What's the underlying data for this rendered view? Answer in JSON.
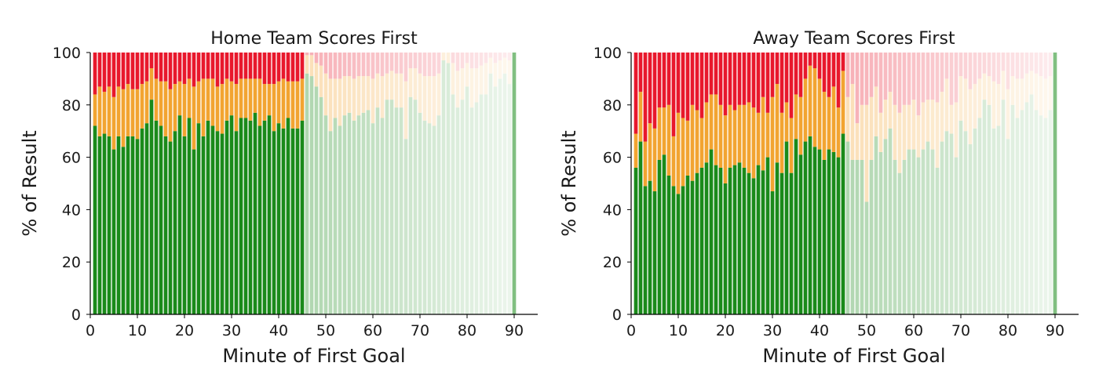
{
  "chart_data": [
    {
      "type": "bar",
      "stacked": true,
      "title": "Home Team Scores First",
      "xlabel": "Minute of First Goal",
      "ylabel": "% of Result",
      "xlim": [
        0,
        95
      ],
      "ylim": [
        0,
        100
      ],
      "xticks": [
        "0",
        "10",
        "20",
        "30",
        "40",
        "50",
        "60",
        "70",
        "80",
        "90"
      ],
      "yticks": [
        "0",
        "20",
        "40",
        "60",
        "80",
        "100"
      ],
      "x": [
        1,
        2,
        3,
        4,
        5,
        6,
        7,
        8,
        9,
        10,
        11,
        12,
        13,
        14,
        15,
        16,
        17,
        18,
        19,
        20,
        21,
        22,
        23,
        24,
        25,
        26,
        27,
        28,
        29,
        30,
        31,
        32,
        33,
        34,
        35,
        36,
        37,
        38,
        39,
        40,
        41,
        42,
        43,
        44,
        45,
        46,
        47,
        48,
        49,
        50,
        51,
        52,
        53,
        54,
        55,
        56,
        57,
        58,
        59,
        60,
        61,
        62,
        63,
        64,
        65,
        66,
        67,
        68,
        69,
        70,
        71,
        72,
        73,
        74,
        75,
        76,
        77,
        78,
        79,
        80,
        81,
        82,
        83,
        84,
        85,
        86,
        87,
        88,
        89,
        90,
        91,
        92,
        93,
        94,
        95
      ],
      "series": [
        {
          "color": "#1a8a1a",
          "values": [
            72,
            68,
            69,
            68,
            63,
            68,
            64,
            68,
            68,
            67,
            71,
            73,
            82,
            74,
            72,
            68,
            66,
            70,
            76,
            68,
            75,
            63,
            73,
            68,
            74,
            72,
            70,
            69,
            74,
            76,
            70,
            75,
            75,
            74,
            77,
            72,
            74,
            76,
            70,
            73,
            71,
            75,
            71,
            71,
            74,
            92,
            91,
            87,
            83,
            76,
            70,
            75,
            72,
            76,
            77,
            74,
            76,
            77,
            78,
            73,
            79,
            75,
            82,
            82,
            79,
            79,
            67,
            83,
            82,
            77,
            74,
            73,
            72,
            76,
            97,
            96,
            84,
            79,
            82,
            87,
            79,
            81,
            84,
            84,
            92,
            87,
            90,
            92,
            88,
            100,
            0,
            0,
            0,
            0,
            0
          ]
        },
        {
          "color": "#f2a431",
          "values": [
            12,
            19,
            16,
            19,
            20,
            19,
            22,
            20,
            18,
            19,
            17,
            16,
            12,
            16,
            17,
            21,
            20,
            18,
            13,
            20,
            15,
            24,
            16,
            22,
            16,
            18,
            17,
            19,
            16,
            13,
            18,
            15,
            15,
            16,
            13,
            18,
            14,
            12,
            18,
            16,
            19,
            14,
            18,
            18,
            16,
            7,
            8,
            9,
            12,
            16,
            20,
            15,
            18,
            15,
            14,
            16,
            15,
            14,
            13,
            17,
            13,
            16,
            10,
            11,
            13,
            13,
            22,
            11,
            12,
            15,
            17,
            18,
            19,
            16,
            3,
            4,
            12,
            14,
            12,
            9,
            15,
            13,
            11,
            12,
            6,
            9,
            7,
            6,
            9,
            0,
            0,
            0,
            0,
            0,
            0
          ]
        },
        {
          "color": "#e8182c",
          "values": [
            16,
            13,
            15,
            13,
            17,
            13,
            14,
            12,
            14,
            14,
            12,
            11,
            6,
            10,
            11,
            11,
            14,
            12,
            11,
            12,
            10,
            13,
            11,
            10,
            10,
            10,
            13,
            12,
            10,
            11,
            12,
            10,
            10,
            10,
            10,
            10,
            12,
            12,
            12,
            11,
            10,
            11,
            11,
            11,
            10,
            1,
            1,
            4,
            5,
            8,
            10,
            10,
            10,
            9,
            9,
            10,
            9,
            9,
            9,
            10,
            8,
            9,
            8,
            7,
            8,
            8,
            11,
            6,
            6,
            8,
            9,
            9,
            9,
            8,
            0,
            0,
            4,
            7,
            6,
            4,
            6,
            6,
            5,
            4,
            2,
            4,
            3,
            2,
            3,
            0,
            0,
            0,
            0,
            0,
            0
          ]
        }
      ]
    },
    {
      "type": "bar",
      "stacked": true,
      "title": "Away Team Scores First",
      "xlabel": "Minute of First Goal",
      "ylabel": "% of Result",
      "xlim": [
        0,
        95
      ],
      "ylim": [
        0,
        100
      ],
      "xticks": [
        "0",
        "10",
        "20",
        "30",
        "40",
        "50",
        "60",
        "70",
        "80",
        "90"
      ],
      "yticks": [
        "0",
        "20",
        "40",
        "60",
        "80",
        "100"
      ],
      "x": [
        1,
        2,
        3,
        4,
        5,
        6,
        7,
        8,
        9,
        10,
        11,
        12,
        13,
        14,
        15,
        16,
        17,
        18,
        19,
        20,
        21,
        22,
        23,
        24,
        25,
        26,
        27,
        28,
        29,
        30,
        31,
        32,
        33,
        34,
        35,
        36,
        37,
        38,
        39,
        40,
        41,
        42,
        43,
        44,
        45,
        46,
        47,
        48,
        49,
        50,
        51,
        52,
        53,
        54,
        55,
        56,
        57,
        58,
        59,
        60,
        61,
        62,
        63,
        64,
        65,
        66,
        67,
        68,
        69,
        70,
        71,
        72,
        73,
        74,
        75,
        76,
        77,
        78,
        79,
        80,
        81,
        82,
        83,
        84,
        85,
        86,
        87,
        88,
        89,
        90,
        91,
        92,
        93,
        94,
        95
      ],
      "series": [
        {
          "color": "#1a8a1a",
          "values": [
            56,
            66,
            49,
            51,
            47,
            59,
            61,
            53,
            49,
            46,
            49,
            53,
            51,
            54,
            56,
            58,
            63,
            57,
            56,
            50,
            56,
            57,
            58,
            56,
            54,
            52,
            57,
            55,
            60,
            47,
            58,
            54,
            66,
            54,
            67,
            61,
            66,
            68,
            64,
            63,
            59,
            63,
            62,
            60,
            69,
            66,
            59,
            59,
            59,
            43,
            59,
            68,
            62,
            67,
            71,
            59,
            54,
            59,
            63,
            63,
            60,
            63,
            66,
            63,
            56,
            66,
            70,
            69,
            60,
            74,
            70,
            65,
            71,
            75,
            82,
            80,
            71,
            72,
            82,
            67,
            80,
            75,
            78,
            81,
            84,
            78,
            76,
            75,
            78,
            100,
            0,
            0,
            0,
            0,
            0
          ]
        },
        {
          "color": "#f2a431",
          "values": [
            13,
            19,
            17,
            22,
            24,
            20,
            18,
            27,
            19,
            31,
            26,
            21,
            29,
            24,
            19,
            23,
            21,
            27,
            24,
            26,
            24,
            21,
            22,
            24,
            27,
            27,
            20,
            28,
            17,
            36,
            30,
            23,
            15,
            21,
            17,
            22,
            24,
            27,
            30,
            27,
            26,
            20,
            25,
            19,
            24,
            17,
            29,
            14,
            21,
            37,
            24,
            19,
            15,
            15,
            14,
            21,
            23,
            21,
            17,
            19,
            16,
            18,
            16,
            19,
            25,
            19,
            20,
            11,
            21,
            17,
            20,
            21,
            17,
            15,
            10,
            11,
            18,
            16,
            11,
            19,
            11,
            15,
            12,
            11,
            9,
            14,
            15,
            15,
            13,
            0,
            0,
            0,
            0,
            0,
            0
          ]
        },
        {
          "color": "#e8182c",
          "values": [
            31,
            15,
            34,
            27,
            29,
            21,
            21,
            20,
            32,
            23,
            25,
            26,
            20,
            22,
            25,
            19,
            16,
            16,
            20,
            24,
            20,
            22,
            20,
            20,
            19,
            21,
            23,
            17,
            23,
            17,
            12,
            23,
            19,
            25,
            16,
            17,
            10,
            5,
            6,
            10,
            15,
            17,
            13,
            21,
            7,
            17,
            12,
            27,
            20,
            20,
            17,
            13,
            23,
            18,
            15,
            20,
            23,
            20,
            20,
            18,
            24,
            19,
            18,
            18,
            19,
            15,
            10,
            20,
            19,
            9,
            10,
            14,
            12,
            10,
            8,
            9,
            11,
            12,
            7,
            14,
            9,
            10,
            10,
            8,
            7,
            8,
            9,
            10,
            9,
            0,
            0,
            0,
            0,
            0,
            0
          ]
        }
      ]
    }
  ]
}
